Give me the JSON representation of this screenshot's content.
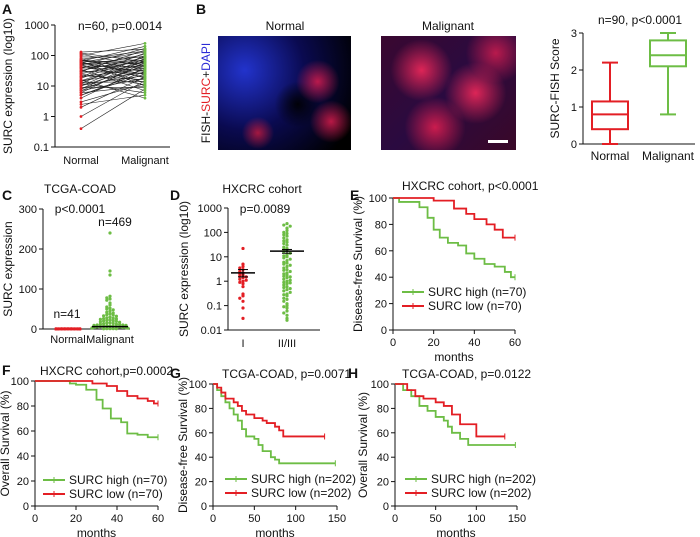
{
  "colors": {
    "red": "#e31e24",
    "green": "#6dbd45",
    "axis": "#111111"
  },
  "panel_labels": [
    "A",
    "B",
    "C",
    "D",
    "E",
    "F",
    "G",
    "H"
  ],
  "panel_b": {
    "image_labels": [
      "Normal",
      "Malignant"
    ],
    "stain_label_parts": [
      "FISH-",
      "SURC",
      "+",
      "DAPI"
    ],
    "stain_colors": [
      "#111111",
      "#e31e24",
      "#111111",
      "#2b2bd6"
    ]
  },
  "chart_data": [
    {
      "id": "A",
      "type": "scatter",
      "subtype": "paired",
      "title": "n=60, p=0.0014",
      "ylabel": "SURC expression (log10)",
      "yscale": "log",
      "ylim": [
        0.1,
        1000
      ],
      "yticks": [
        "0.1",
        "1",
        "10",
        "100",
        "1000"
      ],
      "categories": [
        "Normal",
        "Malignant"
      ],
      "normal": [
        0.4,
        1,
        2,
        2.5,
        3,
        4,
        5,
        5,
        6,
        6,
        7,
        7,
        8,
        8,
        9,
        10,
        10,
        11,
        12,
        12,
        13,
        14,
        15,
        15,
        16,
        18,
        20,
        20,
        22,
        25,
        25,
        28,
        30,
        30,
        32,
        35,
        38,
        40,
        40,
        42,
        45,
        48,
        50,
        50,
        55,
        55,
        60,
        60,
        62,
        65,
        65,
        70,
        70,
        75,
        80,
        90,
        100,
        110,
        120,
        130
      ],
      "malignant": [
        8,
        15,
        20,
        5,
        12,
        40,
        30,
        25,
        60,
        10,
        18,
        50,
        70,
        35,
        9,
        80,
        45,
        22,
        100,
        6,
        14,
        55,
        28,
        65,
        4,
        90,
        38,
        120,
        16,
        75,
        11,
        48,
        150,
        26,
        85,
        7,
        60,
        32,
        110,
        20,
        42,
        170,
        13,
        95,
        58,
        30,
        130,
        24,
        68,
        200,
        10,
        52,
        36,
        140,
        18,
        88,
        250,
        44,
        62,
        160
      ]
    },
    {
      "id": "B",
      "type": "box",
      "title": "n=90, p<0.0001",
      "ylabel": "SURC-FISH Score",
      "ylim": [
        0,
        3
      ],
      "yticks": [
        "0",
        "1",
        "2",
        "3"
      ],
      "categories": [
        "Normal",
        "Malignant"
      ],
      "boxes": [
        {
          "min": 0,
          "q1": 0.4,
          "median": 0.8,
          "q3": 1.15,
          "max": 2.2
        },
        {
          "min": 0.8,
          "q1": 2.1,
          "median": 2.4,
          "q3": 2.8,
          "max": 3.0
        }
      ]
    },
    {
      "id": "C",
      "type": "scatter",
      "title": "TCGA-COAD",
      "subtitle": "p<0.0001",
      "ylabel": "SURC expression",
      "ylim": [
        0,
        300
      ],
      "yticks": [
        "0",
        "100",
        "200",
        "300"
      ],
      "categories": [
        "Normal",
        "Malignant"
      ],
      "n_labels": [
        "n=41",
        "n=469"
      ],
      "normal": [
        0.5,
        0.4,
        0.3,
        0.3,
        0.2,
        0.2,
        0.2,
        0.1,
        0.1,
        0.1,
        0.1,
        0.1
      ],
      "normal_median": 0.2,
      "malignant": [
        240,
        145,
        135,
        82,
        78,
        75,
        72,
        65,
        60,
        55,
        52,
        50,
        48,
        45,
        42,
        40,
        38,
        36,
        35,
        33,
        32,
        30,
        28,
        27,
        26,
        25,
        24,
        23,
        22,
        21,
        20,
        19,
        18,
        17,
        16,
        15,
        14,
        13,
        12,
        12,
        11,
        10,
        10,
        9,
        9,
        8,
        8,
        7,
        7,
        6,
        6,
        5,
        5,
        4,
        4,
        3,
        3,
        2,
        2,
        1,
        1,
        1,
        0.5,
        0.5
      ],
      "malignant_median": 6
    },
    {
      "id": "D",
      "type": "scatter",
      "title": "HXCRC cohort",
      "subtitle": "p=0.0089",
      "ylabel": "SURC expression (log10)",
      "yscale": "log",
      "ylim": [
        0.01,
        1000
      ],
      "yticks": [
        "0.01",
        "0.1",
        "1",
        "10",
        "100",
        "1000"
      ],
      "categories": [
        "I",
        "II/III"
      ],
      "groups": [
        {
          "values": [
            22,
            5,
            4,
            3.5,
            3,
            2.5,
            2.2,
            2,
            1.8,
            1.6,
            1.5,
            1.4,
            1.2,
            1.1,
            1,
            0.9,
            0.8,
            0.6,
            0.3,
            0.25,
            0.2,
            0.15,
            0.08,
            0.03
          ],
          "mean": 2.2,
          "sem": [
            1.5,
            3.0
          ]
        },
        {
          "values": [
            230,
            200,
            180,
            150,
            120,
            100,
            90,
            80,
            70,
            60,
            50,
            45,
            40,
            35,
            30,
            25,
            22,
            20,
            18,
            16,
            14,
            12,
            11,
            10,
            9,
            8,
            7,
            6,
            5.5,
            5,
            4.5,
            4,
            3.5,
            3,
            2.8,
            2.5,
            2.2,
            2,
            1.8,
            1.6,
            1.5,
            1.4,
            1.2,
            1.1,
            1,
            0.9,
            0.85,
            0.8,
            0.7,
            0.6,
            0.55,
            0.5,
            0.45,
            0.4,
            0.35,
            0.3,
            0.28,
            0.25,
            0.2,
            0.18,
            0.15,
            0.12,
            0.1,
            0.09,
            0.08,
            0.06,
            0.05,
            0.04,
            0.03,
            0.025
          ],
          "mean": 17,
          "sem": [
            14,
            20
          ]
        }
      ]
    },
    {
      "id": "E",
      "type": "line",
      "subtype": "kaplan-meier",
      "title": "HXCRC cohort, p<0.0001",
      "xlabel": "months",
      "ylabel": "Disease-free Survival (%)",
      "xlim": [
        0,
        60
      ],
      "ylim": [
        0,
        100
      ],
      "xticks": [
        "0",
        "20",
        "40",
        "60"
      ],
      "yticks": [
        "0",
        "20",
        "40",
        "60",
        "80",
        "100"
      ],
      "series": [
        {
          "name": "SURC high (n=70)",
          "color": "green",
          "points": [
            [
              0,
              100
            ],
            [
              3,
              97
            ],
            [
              11,
              97
            ],
            [
              13,
              93
            ],
            [
              17,
              85
            ],
            [
              20,
              76
            ],
            [
              23,
              70
            ],
            [
              27,
              66
            ],
            [
              32,
              64
            ],
            [
              36,
              58
            ],
            [
              40,
              54
            ],
            [
              45,
              50
            ],
            [
              50,
              48
            ],
            [
              55,
              44
            ],
            [
              58,
              40
            ],
            [
              60,
              40
            ]
          ]
        },
        {
          "name": "SURC low (n=70)",
          "color": "red",
          "points": [
            [
              0,
              100
            ],
            [
              10,
              100
            ],
            [
              20,
              98
            ],
            [
              30,
              92
            ],
            [
              36,
              88
            ],
            [
              40,
              84
            ],
            [
              46,
              80
            ],
            [
              50,
              76
            ],
            [
              54,
              70
            ],
            [
              60,
              70
            ]
          ]
        }
      ]
    },
    {
      "id": "F",
      "type": "line",
      "subtype": "kaplan-meier",
      "title": "HXCRC cohort,p=0.0002",
      "xlabel": "months",
      "ylabel": "Overall Survival (%)",
      "xlim": [
        0,
        60
      ],
      "ylim": [
        0,
        100
      ],
      "xticks": [
        "0",
        "20",
        "40",
        "60"
      ],
      "yticks": [
        "0",
        "20",
        "40",
        "60",
        "80",
        "100"
      ],
      "series": [
        {
          "name": "SURC high (n=70)",
          "color": "green",
          "points": [
            [
              0,
              100
            ],
            [
              10,
              100
            ],
            [
              17,
              98
            ],
            [
              20,
              97
            ],
            [
              25,
              93
            ],
            [
              30,
              85
            ],
            [
              33,
              78
            ],
            [
              37,
              70
            ],
            [
              42,
              67
            ],
            [
              45,
              58
            ],
            [
              50,
              57
            ],
            [
              55,
              55
            ],
            [
              60,
              55
            ]
          ]
        },
        {
          "name": "SURC low (n=70)",
          "color": "red",
          "points": [
            [
              0,
              100
            ],
            [
              18,
              100
            ],
            [
              28,
              98
            ],
            [
              35,
              96
            ],
            [
              40,
              92
            ],
            [
              45,
              88
            ],
            [
              50,
              86
            ],
            [
              55,
              84
            ],
            [
              58,
              82
            ],
            [
              60,
              82
            ]
          ]
        }
      ]
    },
    {
      "id": "G",
      "type": "line",
      "subtype": "kaplan-meier",
      "title": "TCGA-COAD, p=0.0071",
      "xlabel": "months",
      "ylabel": "Disease-free Survival (%)",
      "xlim": [
        0,
        150
      ],
      "ylim": [
        0,
        100
      ],
      "xticks": [
        "0",
        "50",
        "100",
        "150"
      ],
      "yticks": [
        "0",
        "20",
        "40",
        "60",
        "80",
        "100"
      ],
      "series": [
        {
          "name": "SURC high (n=202)",
          "color": "green",
          "points": [
            [
              0,
              100
            ],
            [
              5,
              95
            ],
            [
              10,
              90
            ],
            [
              15,
              85
            ],
            [
              20,
              80
            ],
            [
              25,
              75
            ],
            [
              30,
              70
            ],
            [
              35,
              63
            ],
            [
              40,
              57
            ],
            [
              50,
              55
            ],
            [
              55,
              50
            ],
            [
              60,
              45
            ],
            [
              70,
              40
            ],
            [
              75,
              38
            ],
            [
              80,
              35
            ],
            [
              148,
              35
            ]
          ]
        },
        {
          "name": "SURC low (n=202)",
          "color": "red",
          "points": [
            [
              0,
              100
            ],
            [
              5,
              97
            ],
            [
              10,
              93
            ],
            [
              15,
              88
            ],
            [
              25,
              85
            ],
            [
              30,
              82
            ],
            [
              35,
              78
            ],
            [
              40,
              75
            ],
            [
              50,
              72
            ],
            [
              60,
              70
            ],
            [
              65,
              68
            ],
            [
              75,
              65
            ],
            [
              80,
              62
            ],
            [
              85,
              57
            ],
            [
              135,
              57
            ]
          ]
        }
      ]
    },
    {
      "id": "H",
      "type": "line",
      "subtype": "kaplan-meier",
      "title": "TCGA-COAD, p=0.0122",
      "xlabel": "months",
      "ylabel": "Overall Survival (%)",
      "xlim": [
        0,
        150
      ],
      "ylim": [
        0,
        100
      ],
      "xticks": [
        "0",
        "50",
        "100",
        "150"
      ],
      "yticks": [
        "0",
        "20",
        "40",
        "60",
        "80",
        "100"
      ],
      "series": [
        {
          "name": "SURC high (n=202)",
          "color": "green",
          "points": [
            [
              0,
              100
            ],
            [
              10,
              95
            ],
            [
              20,
              90
            ],
            [
              30,
              82
            ],
            [
              40,
              78
            ],
            [
              50,
              73
            ],
            [
              60,
              70
            ],
            [
              65,
              65
            ],
            [
              70,
              60
            ],
            [
              80,
              55
            ],
            [
              90,
              50
            ],
            [
              148,
              50
            ]
          ]
        },
        {
          "name": "SURC low (n=202)",
          "color": "red",
          "points": [
            [
              0,
              100
            ],
            [
              10,
              100
            ],
            [
              15,
              95
            ],
            [
              25,
              90
            ],
            [
              35,
              88
            ],
            [
              50,
              85
            ],
            [
              60,
              82
            ],
            [
              70,
              75
            ],
            [
              80,
              67
            ],
            [
              90,
              67
            ],
            [
              100,
              57
            ],
            [
              135,
              57
            ]
          ]
        }
      ]
    }
  ]
}
